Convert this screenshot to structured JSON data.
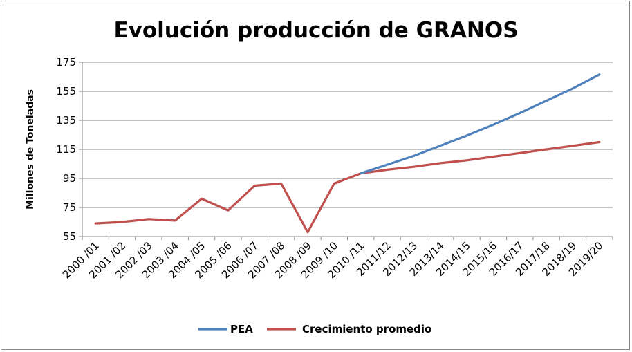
{
  "chart_data": {
    "type": "line",
    "title": "Evolución producción de GRANOS",
    "ylabel": "Millones de Toneladas",
    "xlabel": "",
    "ylim": [
      55,
      175
    ],
    "yticks": [
      55,
      75,
      95,
      115,
      135,
      155,
      175
    ],
    "grid": true,
    "legend_position": "bottom",
    "categories": [
      "2000 /01",
      "2001 /02",
      "2002 /03",
      "2003 /04",
      "2004 /05",
      "2005 /06",
      "2006 /07",
      "2007 /08",
      "2008 /09",
      "2009 /10",
      "2010 /11",
      "2011/12",
      "2012/13",
      "2013/14",
      "2014/15",
      "2015/16",
      "2016/17",
      "2017/18",
      "2018/19",
      "2019/20"
    ],
    "series": [
      {
        "name": "PEA",
        "color": "#4F81BD",
        "values": [
          null,
          null,
          null,
          null,
          null,
          null,
          null,
          null,
          null,
          null,
          98.5,
          104.5,
          110.5,
          117.5,
          124.5,
          132,
          140,
          148.5,
          157,
          166.5
        ]
      },
      {
        "name": "Crecimiento promedio",
        "color": "#C0504D",
        "values": [
          64,
          65,
          67,
          66,
          81,
          73,
          90,
          91.5,
          58,
          91.5,
          98.5,
          101,
          103,
          105.5,
          107.5,
          110,
          112.5,
          115,
          117.5,
          120
        ]
      }
    ]
  }
}
